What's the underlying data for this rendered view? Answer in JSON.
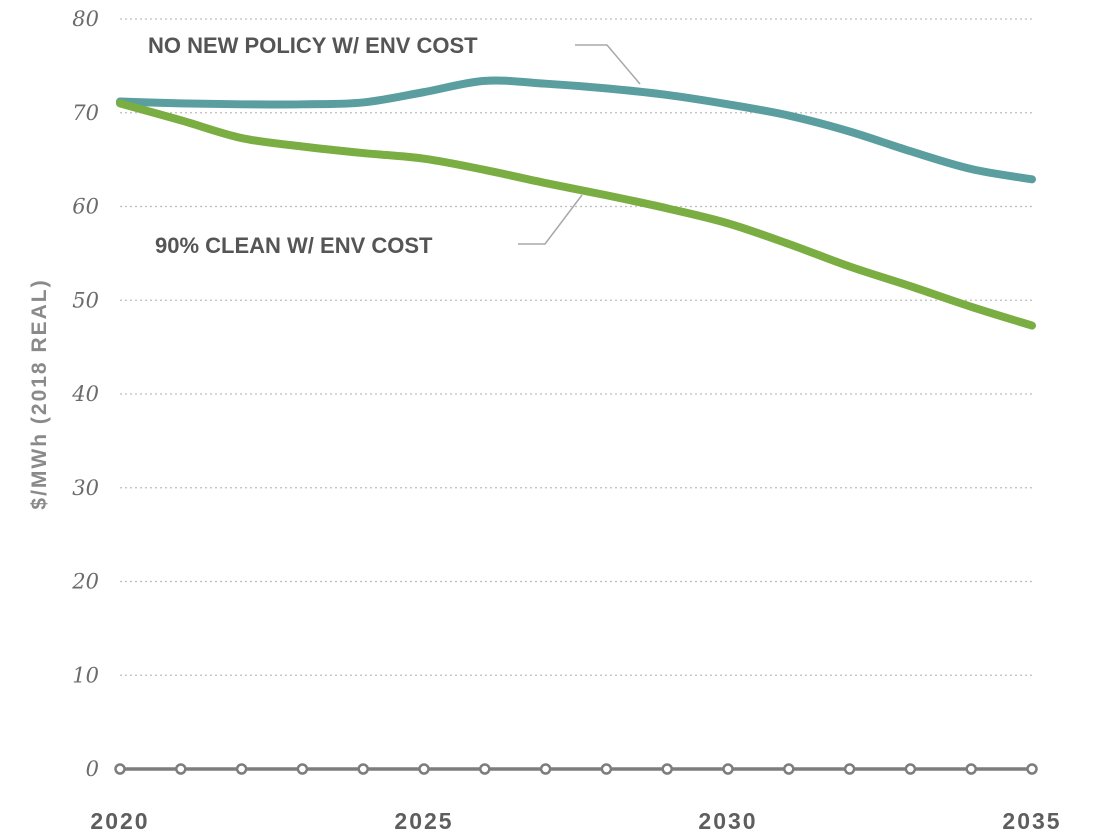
{
  "chart_data": {
    "type": "line",
    "title": "",
    "xlabel": "",
    "ylabel": "$/MWh (2018 REAL)",
    "ylim": [
      0,
      80
    ],
    "yticks": [
      0,
      10,
      20,
      30,
      40,
      50,
      60,
      70,
      80
    ],
    "yticklabels": [
      "0",
      "10",
      "20",
      "30",
      "40",
      "50",
      "60",
      "70",
      "80"
    ],
    "xlim": [
      2020,
      2035
    ],
    "xticks": [
      2020,
      2025,
      2030,
      2035
    ],
    "xticklabels": [
      "2020",
      "2025",
      "2030",
      "2035"
    ],
    "x": [
      2020,
      2021,
      2022,
      2023,
      2024,
      2025,
      2026,
      2027,
      2028,
      2029,
      2030,
      2031,
      2032,
      2033,
      2034,
      2035
    ],
    "grid": true,
    "legend": "none",
    "series": [
      {
        "name": "NO NEW POLICY W/ ENV COST",
        "color": "#5b9ea0",
        "values": [
          71.2,
          71.0,
          70.9,
          70.9,
          71.1,
          72.2,
          73.4,
          73.1,
          72.6,
          71.9,
          70.9,
          69.7,
          68.0,
          65.9,
          64.0,
          62.9
        ]
      },
      {
        "name": "90% CLEAN W/ ENV COST",
        "color": "#7aad42",
        "values": [
          71.0,
          69.2,
          67.3,
          66.4,
          65.7,
          65.1,
          63.9,
          62.5,
          61.2,
          59.8,
          58.2,
          56.0,
          53.6,
          51.5,
          49.3,
          47.3
        ]
      }
    ],
    "baseline": {
      "value": 0,
      "color": "#7d7d7d",
      "markers": "open-circle"
    }
  }
}
